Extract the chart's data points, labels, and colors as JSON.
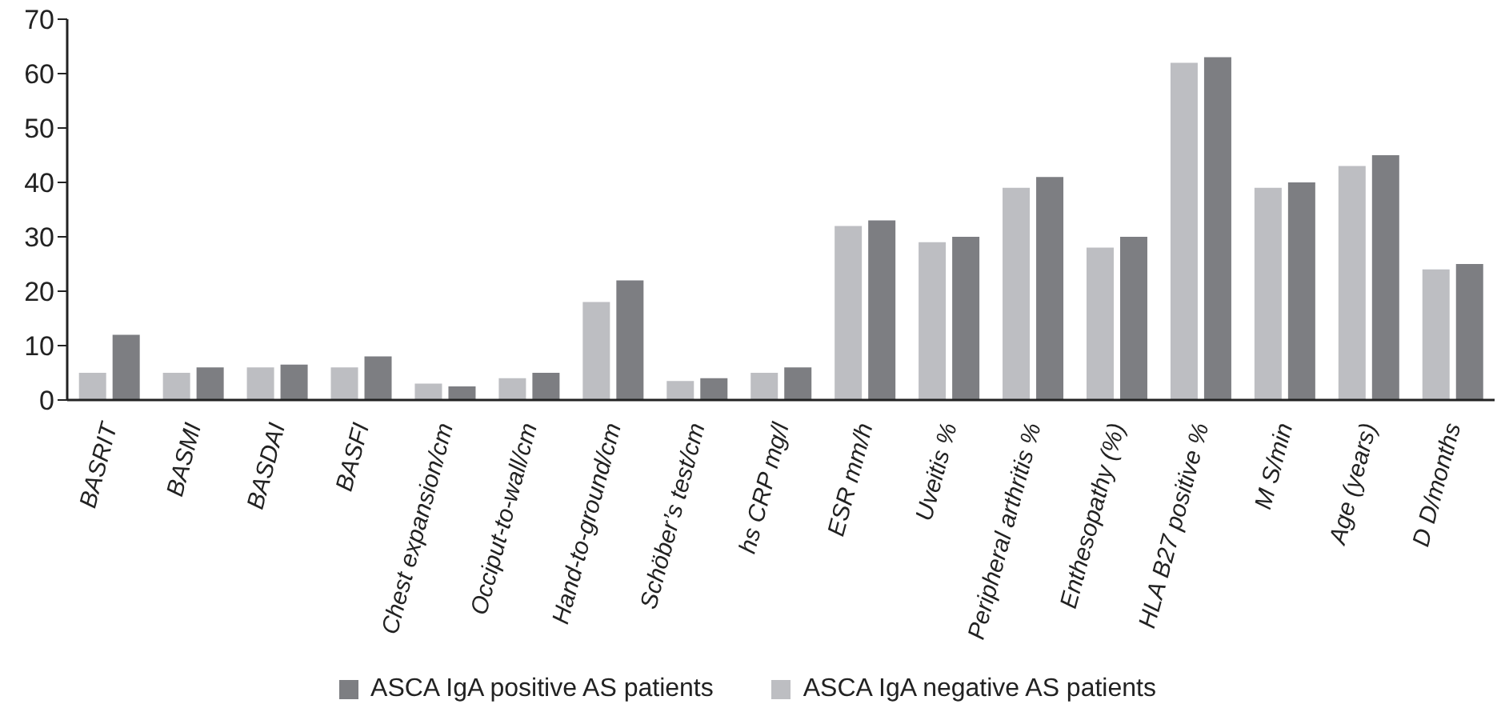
{
  "chart_data": {
    "type": "bar",
    "categories": [
      "BASRIT",
      "BASMI",
      "BASDAI",
      "BASFI",
      "Chest expansion/cm",
      "Occiput-to-wall/cm",
      "Hand-to-ground/cm",
      "Schöber’s test/cm",
      "hs CRP mg/l",
      "ESR mm/h",
      "Uveitis %",
      "Peripheral arthritis %",
      "Enthesopathy (%)",
      "HLA B27 positive %",
      "M S/min",
      "Age (years)",
      "D D/months"
    ],
    "series": [
      {
        "name": "ASCA IgA negative  AS  patients",
        "color": "#bdbec2",
        "values": [
          5,
          5,
          6,
          6,
          3,
          4,
          18,
          3.5,
          5,
          32,
          29,
          39,
          28,
          62,
          39,
          43,
          24
        ]
      },
      {
        "name": "ASCA IgA positive AS  patients",
        "color": "#7d7e82",
        "values": [
          12,
          6,
          6.5,
          8,
          2.5,
          5,
          22,
          4,
          6,
          33,
          30,
          41,
          30,
          63,
          40,
          45,
          25
        ]
      }
    ],
    "ylim": [
      0,
      70
    ],
    "yticks": [
      0,
      10,
      20,
      30,
      40,
      50,
      60,
      70
    ],
    "grid": false,
    "legend": "bottom"
  }
}
